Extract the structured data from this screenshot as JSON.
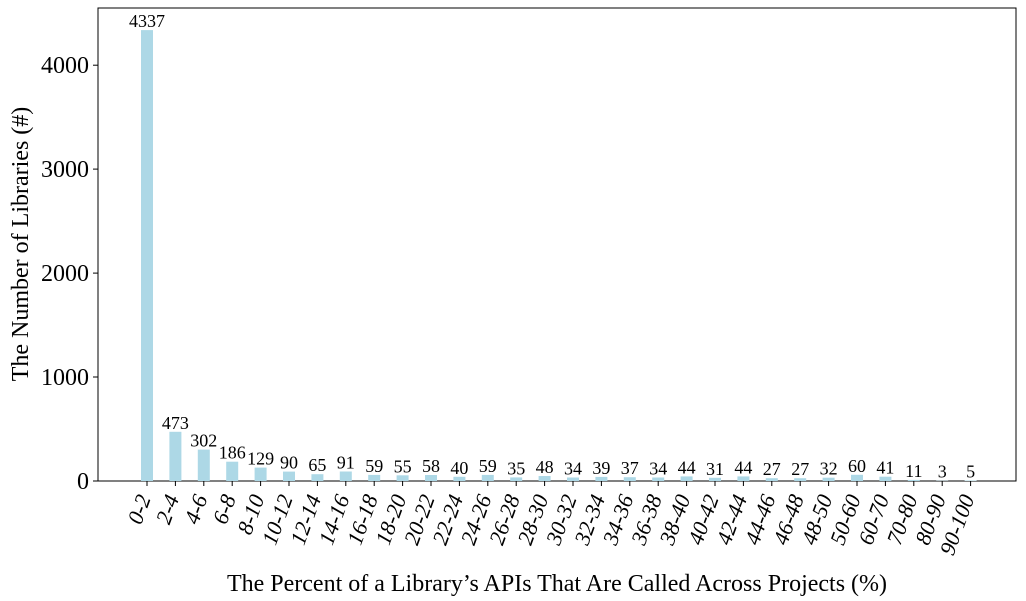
{
  "chart_data": {
    "type": "bar",
    "title": "",
    "xlabel": "The Percent of a Library’s APIs That Are Called Across Projects (%)",
    "ylabel": "The Number of Libraries (#)",
    "ylim": [
      0,
      4550
    ],
    "yticks": [
      0,
      1000,
      2000,
      3000,
      4000
    ],
    "grid": false,
    "legend": "none",
    "bar_color": "#add8e6",
    "categories": [
      "0-2",
      "2-4",
      "4-6",
      "6-8",
      "8-10",
      "10-12",
      "12-14",
      "14-16",
      "16-18",
      "18-20",
      "20-22",
      "22-24",
      "24-26",
      "26-28",
      "28-30",
      "30-32",
      "32-34",
      "34-36",
      "36-38",
      "38-40",
      "40-42",
      "42-44",
      "44-46",
      "46-48",
      "48-50",
      "50-60",
      "60-70",
      "70-80",
      "80-90",
      "90-100"
    ],
    "values": [
      4337,
      473,
      302,
      186,
      129,
      90,
      65,
      91,
      59,
      55,
      58,
      40,
      59,
      35,
      48,
      34,
      39,
      37,
      34,
      44,
      31,
      44,
      27,
      27,
      32,
      60,
      41,
      11,
      3,
      5
    ]
  }
}
